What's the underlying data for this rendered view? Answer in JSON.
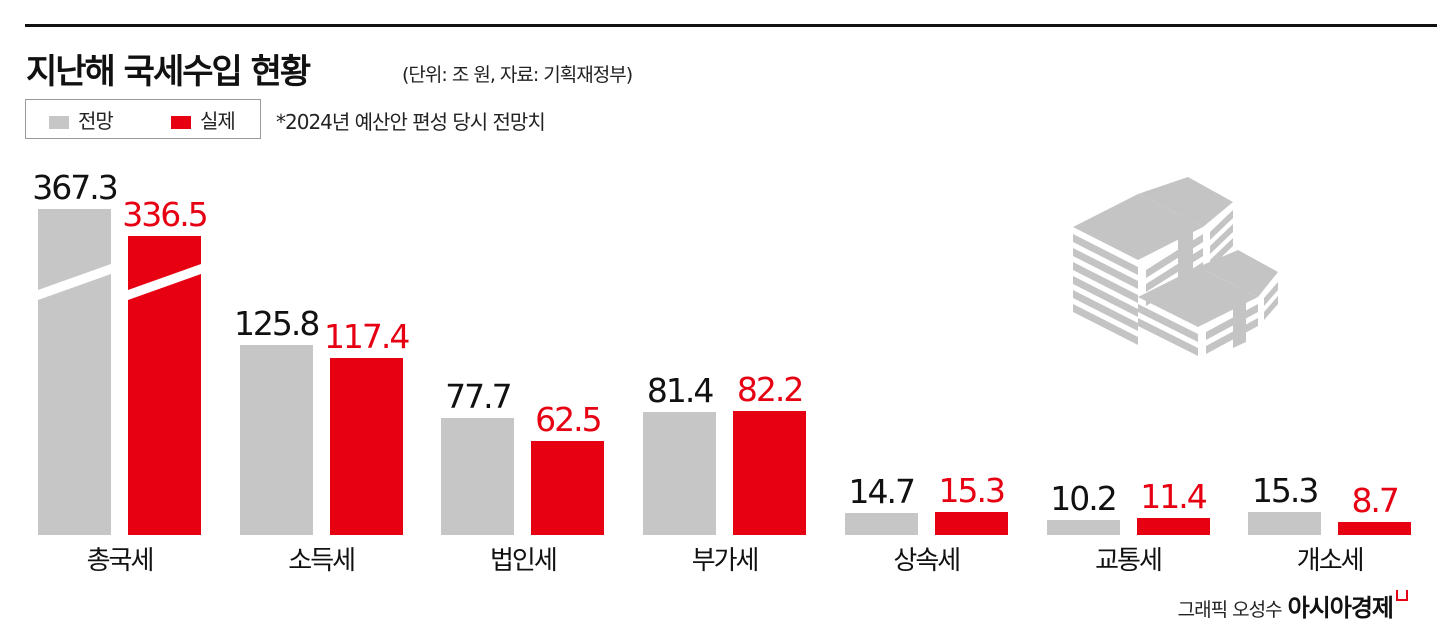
{
  "header": {
    "title": "지난해 국세수입 현황",
    "subtitle": "(단위: 조 원, 자료: 기획재정부)"
  },
  "legend": {
    "items": [
      {
        "label": "전망",
        "color": "#c6c6c6"
      },
      {
        "label": "실제",
        "color": "#e60012"
      }
    ],
    "note": "*2024년 예산안 편성 당시 전망치"
  },
  "credit": {
    "graphic": "그래픽 오성수",
    "brand": "아시아경제"
  },
  "colors": {
    "forecast": "#c6c6c6",
    "actual": "#e60012",
    "text": "#111111"
  },
  "chart_data": {
    "type": "bar",
    "title": "지난해 국세수입 현황",
    "subtitle": "(단위: 조 원, 자료: 기획재정부)",
    "unit": "조 원",
    "source": "기획재정부",
    "categories": [
      "총국세",
      "소득세",
      "법인세",
      "부가세",
      "상속세",
      "교통세",
      "개소세"
    ],
    "series": [
      {
        "name": "전망",
        "color": "#c6c6c6",
        "values": [
          367.3,
          125.8,
          77.7,
          81.4,
          14.7,
          10.2,
          15.3
        ]
      },
      {
        "name": "실제",
        "color": "#e60012",
        "values": [
          336.5,
          117.4,
          62.5,
          82.2,
          15.3,
          11.4,
          8.7
        ]
      }
    ],
    "value_labels": {
      "전망": [
        "367.3",
        "125.8",
        "77.7",
        "81.4",
        "14.7",
        "10.2",
        "15.3"
      ],
      "실제": [
        "336.5",
        "117.4",
        "62.5",
        "82.2",
        "15.3",
        "11.4",
        "8.7"
      ]
    },
    "annotations": [
      "*2024년 예산안 편성 당시 전망치",
      "총국세 bars use a broken (truncated) axis"
    ],
    "xlabel": "",
    "ylabel": "",
    "grid": false,
    "legend_position": "top-left"
  }
}
